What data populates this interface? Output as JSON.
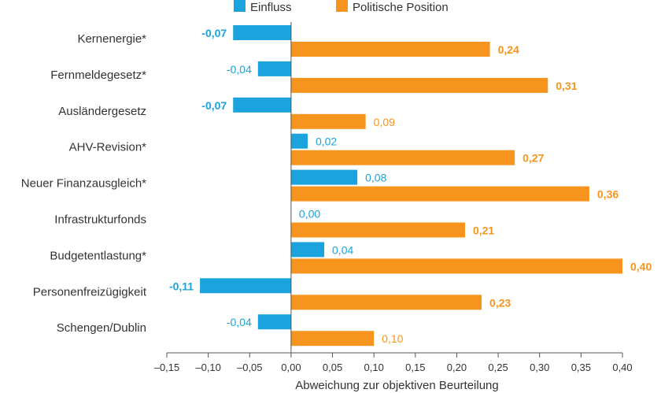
{
  "chart_data": {
    "type": "bar",
    "orientation": "horizontal",
    "categories": [
      "Kernenergie*",
      "Fernmeldegesetz*",
      "Ausländergesetz",
      "AHV-Revision*",
      "Neuer Finanzausgleich*",
      "Infrastrukturfonds",
      "Budgetentlastung*",
      "Personenfreizügigkeit",
      "Schengen/Dublin"
    ],
    "series": [
      {
        "name": "Einfluss",
        "color": "#1aa3dc",
        "values": [
          -0.07,
          -0.04,
          -0.07,
          0.02,
          0.08,
          0.0,
          0.04,
          -0.11,
          -0.04
        ],
        "labels": [
          "-0,07",
          "-0,04",
          "-0,07",
          "0,02",
          "0,08",
          "0,00",
          "0,04",
          "-0,11",
          "-0,04"
        ],
        "bold": [
          true,
          false,
          true,
          false,
          false,
          false,
          false,
          true,
          false
        ]
      },
      {
        "name": "Politische Position",
        "color": "#f7941d",
        "values": [
          0.24,
          0.31,
          0.09,
          0.27,
          0.36,
          0.21,
          0.4,
          0.23,
          0.1
        ],
        "labels": [
          "0,24",
          "0,31",
          "0,09",
          "0,27",
          "0,36",
          "0,21",
          "0,40",
          "0,23",
          "0,10"
        ],
        "bold": [
          true,
          true,
          false,
          true,
          true,
          true,
          true,
          true,
          false
        ]
      }
    ],
    "xlim": [
      -0.15,
      0.4
    ],
    "xticks": [
      -0.15,
      -0.1,
      -0.05,
      0.0,
      0.05,
      0.1,
      0.15,
      0.2,
      0.25,
      0.3,
      0.35,
      0.4
    ],
    "xtick_labels": [
      "–0,15",
      "–0,10",
      "–0,05",
      "0,00",
      "0,05",
      "0,10",
      "0,15",
      "0,20",
      "0,25",
      "0,30",
      "0,35",
      "0,40"
    ],
    "xlabel": "Abweichung zur objektiven Beurteilung",
    "legend_position": "top",
    "grid": false
  }
}
